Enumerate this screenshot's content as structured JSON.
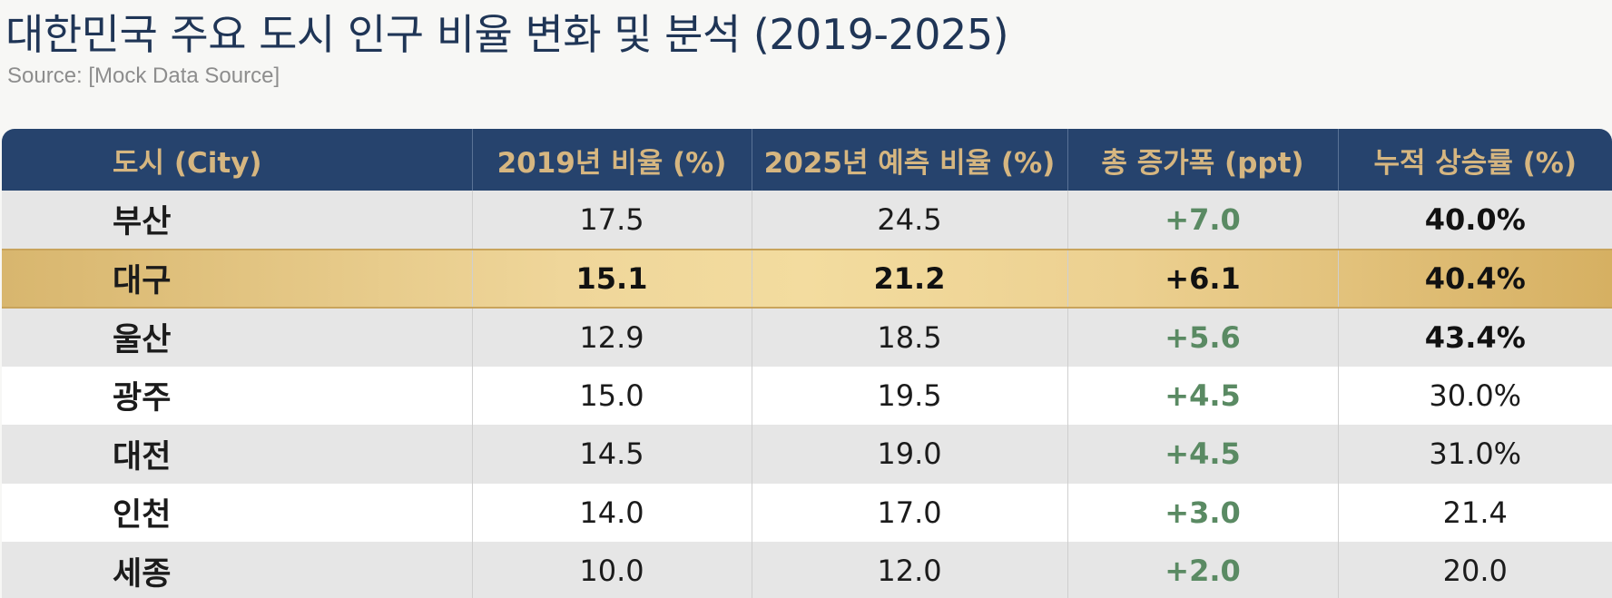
{
  "title": "대한민국 주요 도시 인구 비율 변화 및 분석 (2019-2025)",
  "source": "Source: [Mock Data Source]",
  "colors": {
    "header_bg": "#26436d",
    "header_text": "#d6b680",
    "positive": "#5a8a63",
    "highlight": "#f3dc9f"
  },
  "chart_data": {
    "type": "table",
    "columns": [
      "도시 (City)",
      "2019년 비율 (%)",
      "2025년 예측 비율 (%)",
      "총 증가폭 (ppt)",
      "누적 상승률 (%)"
    ],
    "rows": [
      {
        "city": "부산",
        "v2019": "17.5",
        "v2025": "24.5",
        "increase": "+7.0",
        "growth": "40.0%",
        "highlight": false,
        "growth_bold": true
      },
      {
        "city": "대구",
        "v2019": "15.1",
        "v2025": "21.2",
        "increase": "+6.1",
        "growth": "40.4%",
        "highlight": true,
        "growth_bold": true
      },
      {
        "city": "울산",
        "v2019": "12.9",
        "v2025": "18.5",
        "increase": "+5.6",
        "growth": "43.4%",
        "highlight": false,
        "growth_bold": true
      },
      {
        "city": "광주",
        "v2019": "15.0",
        "v2025": "19.5",
        "increase": "+4.5",
        "growth": "30.0%",
        "highlight": false,
        "growth_bold": false
      },
      {
        "city": "대전",
        "v2019": "14.5",
        "v2025": "19.0",
        "increase": "+4.5",
        "growth": "31.0%",
        "highlight": false,
        "growth_bold": false
      },
      {
        "city": "인천",
        "v2019": "14.0",
        "v2025": "17.0",
        "increase": "+3.0",
        "growth": "21.4",
        "highlight": false,
        "growth_bold": false
      },
      {
        "city": "세종",
        "v2019": "10.0",
        "v2025": "12.0",
        "increase": "+2.0",
        "growth": "20.0",
        "highlight": false,
        "growth_bold": false
      }
    ]
  }
}
